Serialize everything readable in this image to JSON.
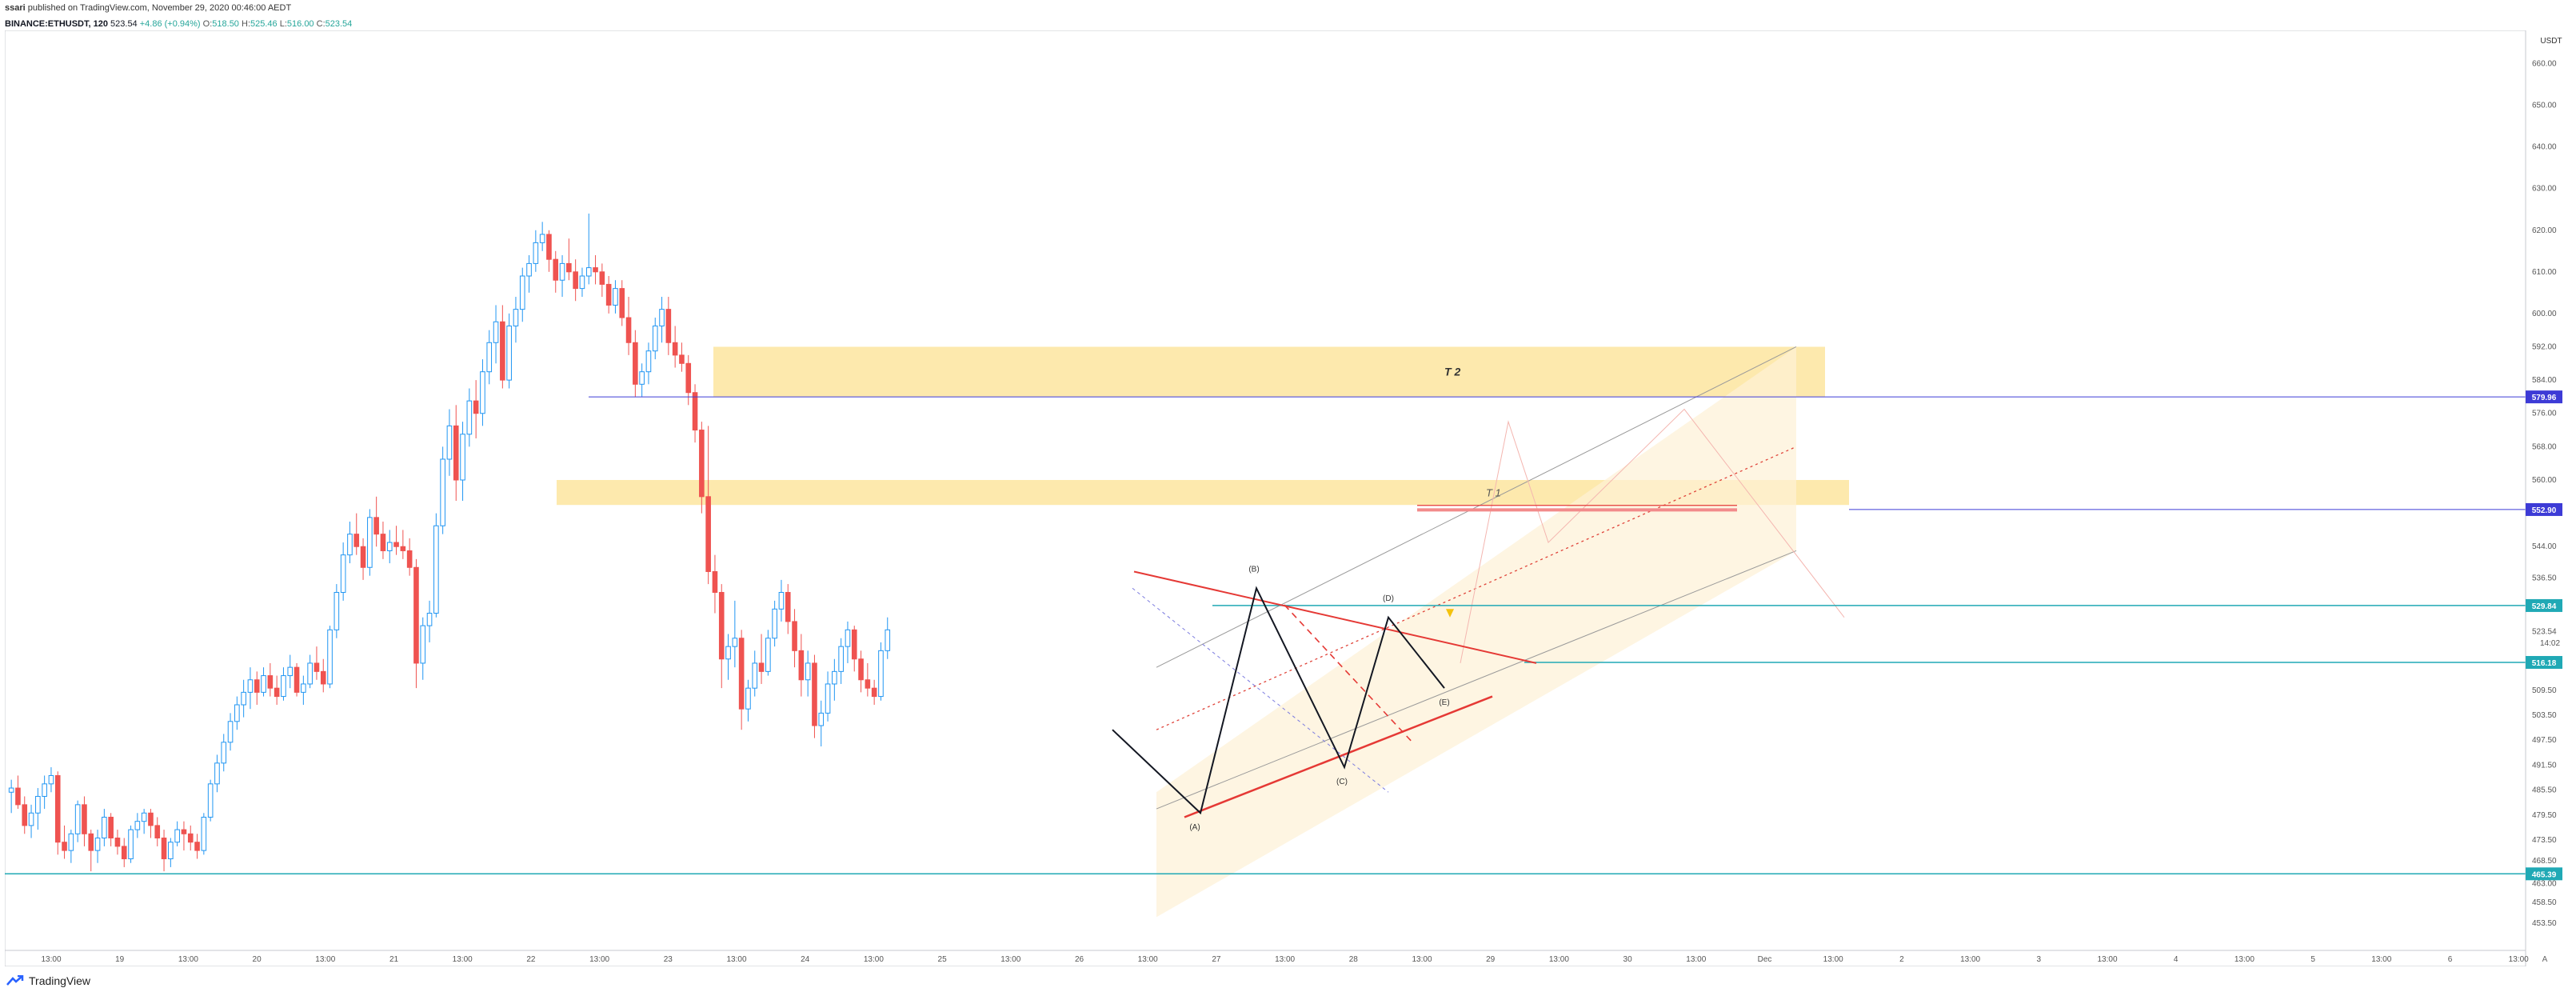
{
  "header": {
    "author": "ssari",
    "published_text": "published on TradingView.com, November 29, 2020 00:46:00 AEDT",
    "symbol": "BINANCE:ETHUSDT, 120",
    "last": "523.54",
    "change": "+4.86 (+0.94%)",
    "ohlc": {
      "o_label": "O:",
      "o": "518.50",
      "h_label": "H:",
      "h": "525.46",
      "l_label": "L:",
      "l": "516.00",
      "c_label": "C:",
      "c": "523.54"
    }
  },
  "brand": {
    "name": "TradingView"
  },
  "colors": {
    "up": "#2196f3",
    "down": "#ef5350",
    "zone": "#fde9ad",
    "teal": "#20a9b5",
    "blue_line": "#3d3bd6",
    "triangle": "#e53935",
    "wave": "#131722"
  },
  "price_axis": {
    "currency": "USDT",
    "range": [
      447,
      668
    ],
    "ticks": [
      "660.00",
      "650.00",
      "640.00",
      "630.00",
      "620.00",
      "610.00",
      "600.00",
      "592.00",
      "584.00",
      "576.00",
      "568.00",
      "560.00",
      "552.00",
      "544.00",
      "536.50",
      "523.54",
      "509.50",
      "503.50",
      "497.50",
      "491.50",
      "485.50",
      "479.50",
      "473.50",
      "468.50",
      "463.00",
      "458.50",
      "453.50"
    ],
    "countdown": "14:02",
    "badges": [
      {
        "value": "579.96",
        "color": "#3d3bd6"
      },
      {
        "value": "552.90",
        "color": "#3d3bd6"
      },
      {
        "value": "529.84",
        "color": "#20a9b5"
      },
      {
        "value": "516.18",
        "color": "#20a9b5"
      },
      {
        "value": "465.39",
        "color": "#20a9b5"
      }
    ]
  },
  "time_axis": {
    "labels": [
      "13:00",
      "19",
      "13:00",
      "20",
      "13:00",
      "21",
      "13:00",
      "22",
      "13:00",
      "23",
      "13:00",
      "24",
      "13:00",
      "25",
      "13:00",
      "26",
      "13:00",
      "27",
      "13:00",
      "28",
      "13:00",
      "29",
      "13:00",
      "30",
      "13:00",
      "Dec",
      "13:00",
      "2",
      "13:00",
      "3",
      "13:00",
      "4",
      "13:00",
      "5",
      "13:00",
      "6",
      "13:00"
    ],
    "corner": "A"
  },
  "annotations": {
    "zone_t2": "T 2",
    "zone_t1": "T 1",
    "waves": [
      "(A)",
      "(B)",
      "(C)",
      "(D)",
      "(E)"
    ]
  },
  "candles_ohlc": [
    [
      485,
      488,
      480,
      486
    ],
    [
      486,
      489,
      481,
      482
    ],
    [
      482,
      484,
      475,
      477
    ],
    [
      477,
      482,
      474,
      480
    ],
    [
      480,
      486,
      476,
      484
    ],
    [
      484,
      489,
      481,
      487
    ],
    [
      487,
      491,
      485,
      489
    ],
    [
      489,
      490,
      470,
      473
    ],
    [
      473,
      477,
      469,
      471
    ],
    [
      471,
      476,
      468,
      475
    ],
    [
      475,
      483,
      473,
      482
    ],
    [
      482,
      484,
      472,
      475
    ],
    [
      475,
      476,
      466,
      471
    ],
    [
      471,
      476,
      468,
      474
    ],
    [
      474,
      481,
      472,
      479
    ],
    [
      479,
      480,
      472,
      474
    ],
    [
      474,
      476,
      470,
      472
    ],
    [
      472,
      474,
      467,
      469
    ],
    [
      469,
      477,
      468,
      476
    ],
    [
      476,
      480,
      474,
      478
    ],
    [
      478,
      481,
      475,
      480
    ],
    [
      480,
      481,
      474,
      477
    ],
    [
      477,
      479,
      472,
      474
    ],
    [
      474,
      476,
      466,
      469
    ],
    [
      469,
      474,
      467,
      473
    ],
    [
      473,
      478,
      472,
      476
    ],
    [
      476,
      478,
      471,
      475
    ],
    [
      475,
      477,
      471,
      473
    ],
    [
      473,
      475,
      469,
      471
    ],
    [
      471,
      480,
      470,
      479
    ],
    [
      479,
      488,
      478,
      487
    ],
    [
      487,
      494,
      485,
      492
    ],
    [
      492,
      499,
      490,
      497
    ],
    [
      497,
      504,
      495,
      502
    ],
    [
      502,
      508,
      500,
      506
    ],
    [
      506,
      512,
      503,
      509
    ],
    [
      509,
      515,
      505,
      512
    ],
    [
      512,
      514,
      506,
      509
    ],
    [
      509,
      515,
      508,
      513
    ],
    [
      513,
      516,
      508,
      510
    ],
    [
      510,
      513,
      506,
      508
    ],
    [
      508,
      515,
      507,
      513
    ],
    [
      513,
      518,
      510,
      515
    ],
    [
      515,
      516,
      508,
      509
    ],
    [
      509,
      513,
      506,
      511
    ],
    [
      511,
      518,
      510,
      516
    ],
    [
      516,
      520,
      512,
      514
    ],
    [
      514,
      517,
      509,
      511
    ],
    [
      511,
      525,
      510,
      524
    ],
    [
      524,
      535,
      522,
      533
    ],
    [
      533,
      545,
      531,
      542
    ],
    [
      542,
      550,
      540,
      547
    ],
    [
      547,
      552,
      542,
      544
    ],
    [
      544,
      546,
      536,
      539
    ],
    [
      539,
      553,
      537,
      551
    ],
    [
      551,
      556,
      544,
      547
    ],
    [
      547,
      550,
      541,
      543
    ],
    [
      543,
      548,
      540,
      545
    ],
    [
      545,
      549,
      542,
      544
    ],
    [
      544,
      548,
      541,
      543
    ],
    [
      543,
      546,
      537,
      539
    ],
    [
      539,
      541,
      510,
      516
    ],
    [
      516,
      527,
      512,
      525
    ],
    [
      525,
      531,
      521,
      528
    ],
    [
      528,
      552,
      527,
      549
    ],
    [
      549,
      568,
      547,
      565
    ],
    [
      565,
      577,
      561,
      573
    ],
    [
      573,
      578,
      555,
      560
    ],
    [
      560,
      574,
      555,
      571
    ],
    [
      571,
      582,
      568,
      579
    ],
    [
      579,
      584,
      570,
      576
    ],
    [
      576,
      589,
      573,
      586
    ],
    [
      586,
      596,
      583,
      593
    ],
    [
      593,
      602,
      588,
      598
    ],
    [
      598,
      602,
      582,
      584
    ],
    [
      584,
      600,
      582,
      597
    ],
    [
      597,
      604,
      593,
      601
    ],
    [
      601,
      611,
      598,
      609
    ],
    [
      609,
      614,
      605,
      612
    ],
    [
      612,
      620,
      610,
      617
    ],
    [
      617,
      622,
      615,
      619
    ],
    [
      619,
      620,
      610,
      613
    ],
    [
      613,
      615,
      605,
      608
    ],
    [
      608,
      614,
      604,
      612
    ],
    [
      612,
      618,
      608,
      610
    ],
    [
      610,
      613,
      603,
      606
    ],
    [
      606,
      611,
      604,
      609
    ],
    [
      609,
      624,
      607,
      611
    ],
    [
      611,
      614,
      607,
      610
    ],
    [
      610,
      612,
      604,
      607
    ],
    [
      607,
      609,
      600,
      602
    ],
    [
      602,
      608,
      600,
      606
    ],
    [
      606,
      608,
      597,
      599
    ],
    [
      599,
      604,
      590,
      593
    ],
    [
      593,
      596,
      580,
      583
    ],
    [
      583,
      588,
      580,
      586
    ],
    [
      586,
      593,
      583,
      591
    ],
    [
      591,
      599,
      589,
      597
    ],
    [
      597,
      604,
      593,
      601
    ],
    [
      601,
      604,
      590,
      593
    ],
    [
      593,
      597,
      587,
      590
    ],
    [
      590,
      593,
      586,
      588
    ],
    [
      588,
      590,
      578,
      581
    ],
    [
      581,
      583,
      569,
      572
    ],
    [
      572,
      574,
      552,
      556
    ],
    [
      556,
      573,
      535,
      538
    ],
    [
      538,
      542,
      528,
      533
    ],
    [
      533,
      535,
      510,
      517
    ],
    [
      517,
      523,
      512,
      520
    ],
    [
      520,
      531,
      515,
      522
    ],
    [
      522,
      524,
      500,
      505
    ],
    [
      505,
      512,
      502,
      510
    ],
    [
      510,
      519,
      508,
      516
    ],
    [
      516,
      523,
      511,
      514
    ],
    [
      514,
      524,
      513,
      522
    ],
    [
      522,
      531,
      520,
      529
    ],
    [
      529,
      536,
      526,
      533
    ],
    [
      533,
      535,
      523,
      526
    ],
    [
      526,
      529,
      515,
      519
    ],
    [
      519,
      523,
      508,
      512
    ],
    [
      512,
      519,
      508,
      516
    ],
    [
      516,
      518,
      498,
      501
    ],
    [
      501,
      507,
      496,
      504
    ],
    [
      504,
      514,
      502,
      511
    ],
    [
      511,
      517,
      507,
      514
    ],
    [
      514,
      522,
      511,
      520
    ],
    [
      520,
      526,
      516,
      524
    ],
    [
      524,
      525,
      514,
      517
    ],
    [
      517,
      519,
      509,
      512
    ],
    [
      512,
      516,
      508,
      510
    ],
    [
      510,
      512,
      506,
      508
    ],
    [
      508,
      521,
      507,
      519
    ],
    [
      519,
      527,
      517,
      524
    ]
  ],
  "price_labels_unused": []
}
